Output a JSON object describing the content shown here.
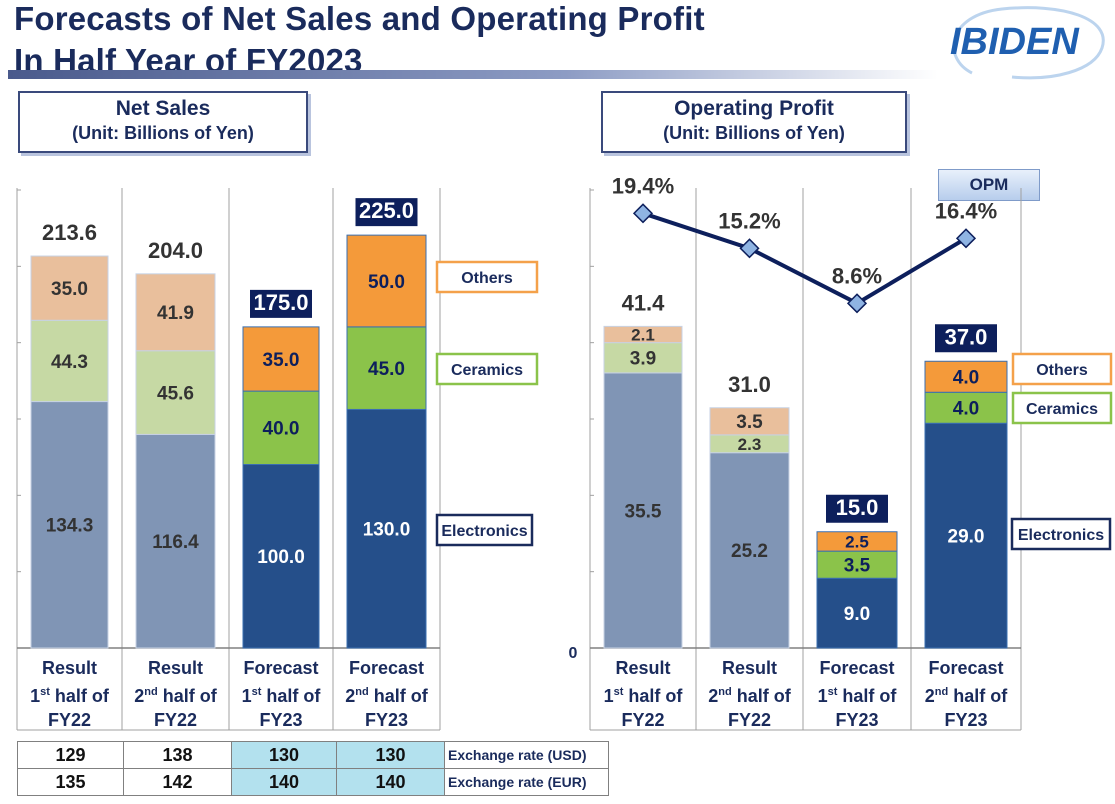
{
  "header": {
    "title_line1": "Forecasts of Net Sales and Operating Profit",
    "title_line2": "In Half Year of FY2023",
    "logo_text": "IBIDEN"
  },
  "net_sales": {
    "heading": "Net Sales",
    "unit": "(Unit: Billions of Yen)"
  },
  "operating_profit": {
    "heading": "Operating  Profit",
    "unit": "(Unit: Billions of Yen)",
    "opm_label": "OPM",
    "zero_label": "0"
  },
  "columns": [
    {
      "line1": "Result",
      "ord": "1",
      "sup": "st",
      "rest": " half of",
      "line3": "FY22"
    },
    {
      "line1": "Result",
      "ord": "2",
      "sup": "nd",
      "rest": "  half of",
      "line3": "FY22"
    },
    {
      "line1": "Forecast",
      "ord": "1",
      "sup": "st",
      "rest": " half of",
      "line3": "FY23"
    },
    {
      "line1": "Forecast",
      "ord": "2",
      "sup": "nd",
      "rest": "  half of",
      "line3": "FY23"
    }
  ],
  "exchange": {
    "rows": [
      {
        "label": "Exchange rate (USD)",
        "values": [
          "129",
          "138",
          "130",
          "130"
        ]
      },
      {
        "label": "Exchange rate (EUR)",
        "values": [
          "135",
          "142",
          "140",
          "140"
        ]
      }
    ]
  },
  "colors": {
    "result_electronics": "#8095b5",
    "result_ceramics": "#c6d9a4",
    "result_others": "#e9bf9c",
    "forecast_electronics": "#254f8a",
    "forecast_ceramics": "#8bc34a",
    "forecast_others": "#f49a3a",
    "total_box": "#0d1f5c",
    "others_legend_border": "#f4a14a",
    "ceramics_legend_border": "#8bc34a",
    "electronics_legend_border": "#1a2b5c",
    "opm_line": "#0d1f5c",
    "opm_marker": "#8fb4e3"
  },
  "chart_data": [
    {
      "type": "bar",
      "title": "Net Sales",
      "subtitle": "(Unit: Billions of Yen)",
      "categories": [
        "Result 1st half of FY22",
        "Result 2nd half of FY22",
        "Forecast 1st half of FY23",
        "Forecast 2nd half of FY23"
      ],
      "stacked": true,
      "series": [
        {
          "name": "Electronics",
          "values": [
            134.3,
            116.4,
            100.0,
            130.0
          ],
          "labels": [
            "134.3",
            "116.4",
            "100.0",
            "130.0"
          ]
        },
        {
          "name": "Ceramics",
          "values": [
            44.3,
            45.6,
            40.0,
            45.0
          ],
          "labels": [
            "44.3",
            "45.6",
            "40.0",
            "45.0"
          ]
        },
        {
          "name": "Others",
          "values": [
            35.0,
            41.9,
            35.0,
            50.0
          ],
          "labels": [
            "35.0",
            "41.9",
            "35.0",
            "50.0"
          ]
        }
      ],
      "totals": [
        "213.6",
        "204.0",
        "175.0",
        "225.0"
      ],
      "forecast_flags": [
        false,
        false,
        true,
        true
      ],
      "ylim": [
        0,
        290
      ],
      "grid": false
    },
    {
      "type": "bar",
      "title": "Operating  Profit",
      "subtitle": "(Unit: Billions of Yen)",
      "categories": [
        "Result 1st half of FY22",
        "Result 2nd half of FY22",
        "Forecast 1st half of FY23",
        "Forecast 2nd half of FY23"
      ],
      "stacked": true,
      "series": [
        {
          "name": "Electronics",
          "values": [
            35.5,
            25.2,
            9.0,
            29.0
          ],
          "labels": [
            "35.5",
            "25.2",
            "9.0",
            "29.0"
          ]
        },
        {
          "name": "Ceramics",
          "values": [
            3.9,
            2.3,
            3.5,
            4.0
          ],
          "labels": [
            "3.9",
            "2.3",
            "3.5",
            "4.0"
          ]
        },
        {
          "name": "Others",
          "values": [
            2.1,
            3.5,
            2.5,
            4.0
          ],
          "labels": [
            "2.1",
            "3.5",
            "2.5",
            "4.0"
          ]
        }
      ],
      "totals": [
        "41.4",
        "31.0",
        "15.0",
        "37.0"
      ],
      "forecast_flags": [
        false,
        false,
        true,
        true
      ],
      "ylim": [
        0,
        53
      ],
      "line_series": {
        "name": "OPM",
        "values": [
          19.4,
          15.2,
          8.6,
          16.4
        ],
        "labels": [
          "19.4%",
          "15.2%",
          "8.6%",
          "16.4%"
        ],
        "ylim": [
          0,
          30
        ]
      }
    }
  ]
}
